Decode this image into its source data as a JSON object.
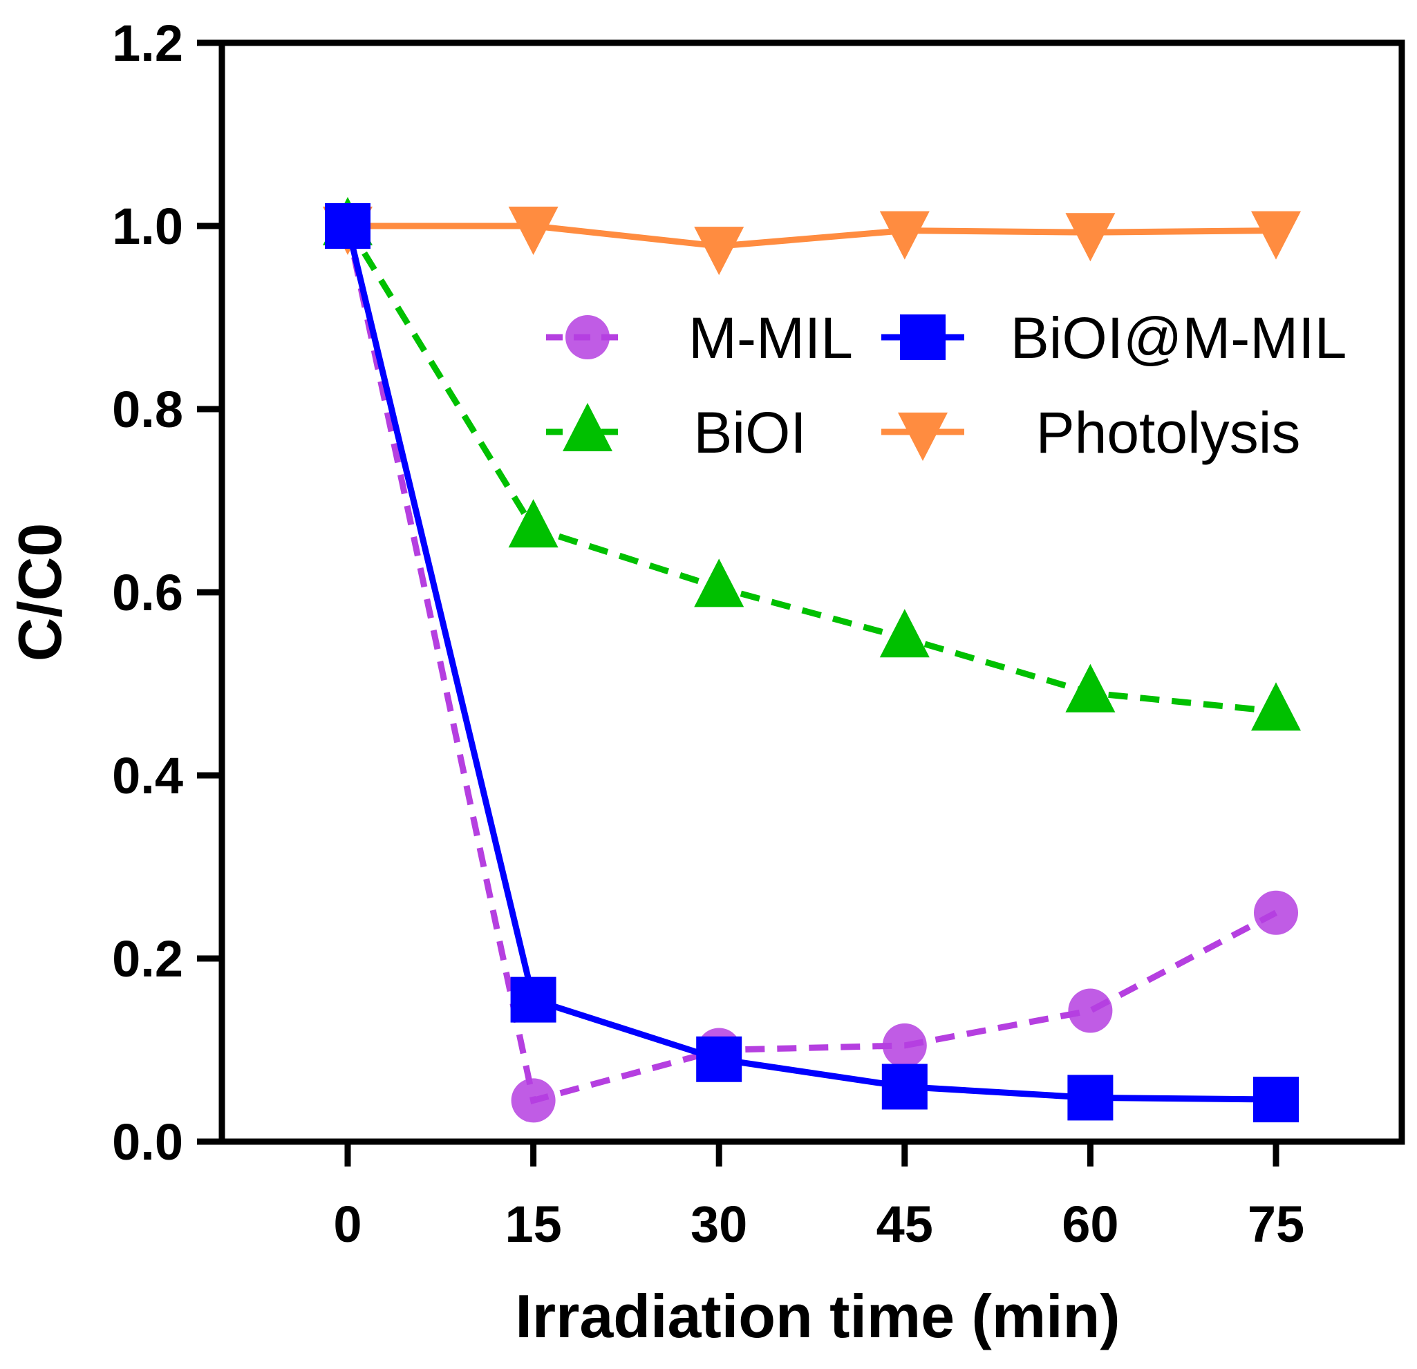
{
  "chart_data": {
    "type": "line",
    "title": "",
    "xlabel": "Irradiation time (min)",
    "ylabel": "C/C0",
    "x": [
      0,
      15,
      30,
      45,
      60,
      75
    ],
    "x_tick_labels": [
      "0",
      "15",
      "30",
      "45",
      "60",
      "75"
    ],
    "y_tick_labels": [
      "0.0",
      "0.2",
      "0.4",
      "0.6",
      "0.8",
      "1.0",
      "1.2"
    ],
    "ylim": [
      0,
      1.2
    ],
    "xlim": [
      -10,
      85
    ],
    "grid": false,
    "legend_position": "top-right",
    "series": [
      {
        "name": "M-MIL",
        "color": "#B53FE0",
        "marker": "circle",
        "line": "dashed",
        "values": [
          1.0,
          0.045,
          0.1,
          0.105,
          0.143,
          0.25
        ]
      },
      {
        "name": "BiOI@M-MIL",
        "color": "#0000FF",
        "marker": "square",
        "line": "solid",
        "values": [
          1.0,
          0.155,
          0.09,
          0.06,
          0.048,
          0.046
        ]
      },
      {
        "name": "BiOI",
        "color": "#00C000",
        "marker": "triangle-up",
        "line": "dashed",
        "values": [
          1.0,
          0.67,
          0.605,
          0.55,
          0.49,
          0.47
        ]
      },
      {
        "name": "Photolysis",
        "color": "#FF8C40",
        "marker": "triangle-down",
        "line": "solid",
        "values": [
          1.0,
          1.0,
          0.978,
          0.995,
          0.993,
          0.995
        ]
      }
    ]
  }
}
